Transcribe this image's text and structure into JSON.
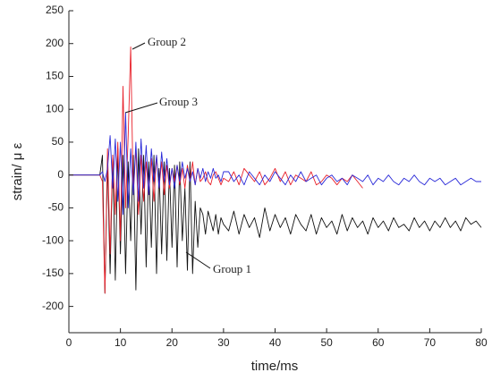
{
  "chart_data": {
    "type": "line",
    "xlabel": "time/ms",
    "ylabel": "strain/ μ ε",
    "x": [
      0,
      2,
      4,
      6,
      6.5,
      7,
      7.5,
      8,
      8.5,
      9,
      9.5,
      10,
      10.5,
      11,
      11.5,
      12,
      12.5,
      13,
      13.5,
      14,
      14.5,
      15,
      15.5,
      16,
      16.5,
      17,
      17.5,
      18,
      18.5,
      19,
      19.5,
      20,
      20.5,
      21,
      21.5,
      22,
      22.5,
      23,
      23.5,
      24,
      24.5,
      25,
      25.5,
      26,
      26.5,
      27,
      27.5,
      28,
      28.5,
      29,
      29.5,
      30,
      31,
      32,
      33,
      34,
      35,
      36,
      37,
      38,
      39,
      40,
      41,
      42,
      43,
      44,
      45,
      46,
      47,
      48,
      49,
      50,
      51,
      52,
      53,
      54,
      55,
      56,
      57,
      58,
      59,
      60,
      61,
      62,
      63,
      64,
      65,
      66,
      67,
      68,
      69,
      70,
      71,
      72,
      73,
      74,
      75,
      76,
      77,
      78,
      79,
      80
    ],
    "series": [
      {
        "name": "Group 1",
        "color": "#111111",
        "values": [
          0,
          0,
          0,
          0,
          30,
          -180,
          20,
          -150,
          30,
          -160,
          40,
          -120,
          30,
          -150,
          20,
          -100,
          30,
          -175,
          40,
          -90,
          30,
          -140,
          20,
          -110,
          30,
          -150,
          10,
          -120,
          20,
          -130,
          10,
          -110,
          15,
          -140,
          20,
          -100,
          -20,
          -145,
          20,
          -150,
          -40,
          -110,
          -50,
          -60,
          -90,
          -55,
          -70,
          -85,
          -60,
          -90,
          -65,
          -75,
          -85,
          -55,
          -90,
          -60,
          -80,
          -65,
          -95,
          -50,
          -85,
          -60,
          -80,
          -65,
          -90,
          -60,
          -75,
          -85,
          -60,
          -90,
          -65,
          -80,
          -70,
          -90,
          -60,
          -85,
          -65,
          -80,
          -70,
          -90,
          -65,
          -80,
          -70,
          -85,
          -65,
          -80,
          -75,
          -85,
          -65,
          -80,
          -70,
          -85,
          -70,
          -80,
          -65,
          -80,
          -70,
          -85,
          -65,
          -75,
          -70,
          -80
        ]
      },
      {
        "name": "Group 2",
        "color": "#e8202a",
        "values": [
          0,
          0,
          0,
          0,
          -10,
          -180,
          40,
          -120,
          30,
          -60,
          50,
          -100,
          135,
          -50,
          60,
          195,
          -30,
          40,
          -60,
          30,
          -40,
          20,
          -30,
          25,
          -40,
          30,
          -20,
          20,
          -30,
          15,
          -20,
          10,
          -10,
          15,
          -15,
          10,
          -20,
          15,
          -10,
          20,
          -15,
          10,
          -10,
          -5,
          5,
          -10,
          -15,
          0,
          5,
          -5,
          -15,
          -5,
          -10,
          5,
          -15,
          10,
          0,
          -10,
          5,
          -15,
          -5,
          10,
          -10,
          5,
          -15,
          0,
          -5,
          -10,
          5,
          -15,
          -10,
          0,
          -5,
          -15,
          -5,
          -10,
          0,
          -10,
          -20,
          null,
          null,
          null,
          null,
          null,
          null,
          null,
          null,
          null,
          null,
          null,
          null,
          null,
          null,
          null,
          null,
          null,
          null,
          null,
          null,
          null,
          null,
          null
        ]
      },
      {
        "name": "Group 3",
        "color": "#2a2ad8",
        "values": [
          0,
          0,
          0,
          0,
          5,
          -10,
          10,
          60,
          -20,
          55,
          -40,
          50,
          -60,
          95,
          -50,
          40,
          -30,
          50,
          -40,
          55,
          -20,
          45,
          -30,
          40,
          -10,
          30,
          -20,
          35,
          -10,
          25,
          -15,
          10,
          -20,
          15,
          -10,
          20,
          -5,
          10,
          -10,
          5,
          -15,
          10,
          -5,
          10,
          -10,
          5,
          -5,
          10,
          -5,
          0,
          -10,
          5,
          5,
          -10,
          0,
          -15,
          5,
          -5,
          -15,
          0,
          -10,
          5,
          -5,
          -15,
          0,
          -10,
          5,
          -10,
          -5,
          0,
          -15,
          -5,
          0,
          -10,
          -5,
          -15,
          0,
          -5,
          -10,
          0,
          -15,
          -5,
          -10,
          0,
          -10,
          -15,
          -5,
          -10,
          0,
          -10,
          -15,
          -5,
          -10,
          -5,
          -15,
          -10,
          -5,
          -15,
          -10,
          -5,
          -10,
          -10
        ]
      }
    ],
    "xlim": [
      0,
      80
    ],
    "xticks": [
      0,
      10,
      20,
      30,
      40,
      50,
      60,
      70,
      80
    ],
    "ylim": [
      -240,
      250
    ],
    "yticks": [
      -200,
      -150,
      -100,
      -50,
      0,
      50,
      100,
      150,
      200,
      250
    ]
  }
}
